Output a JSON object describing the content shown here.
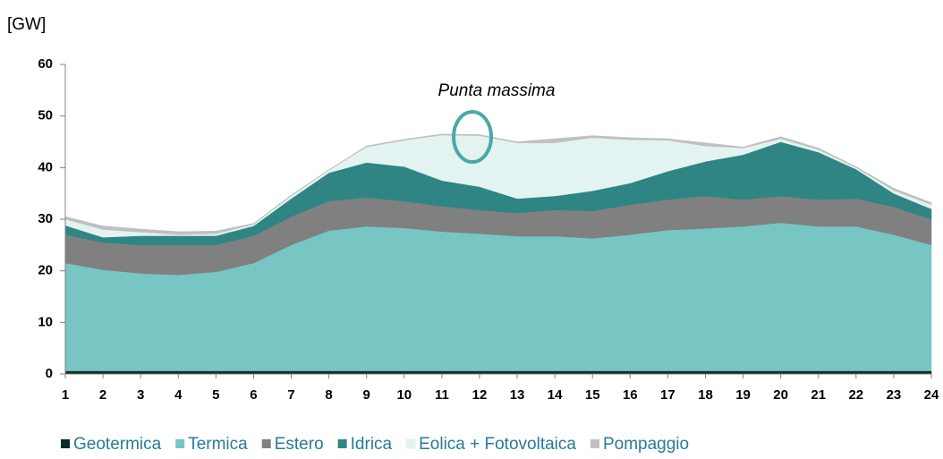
{
  "chart_data": {
    "type": "stacked_area",
    "y_axis_label": "[GW]",
    "annotation": "Punta massima",
    "categories": [
      1,
      2,
      3,
      4,
      5,
      6,
      7,
      8,
      9,
      10,
      11,
      12,
      13,
      14,
      15,
      16,
      17,
      18,
      19,
      20,
      21,
      22,
      23,
      24
    ],
    "ylim": [
      0,
      60
    ],
    "yticks": [
      0,
      10,
      20,
      30,
      40,
      50,
      60
    ],
    "series": [
      {
        "name": "Geotermica",
        "color": "#0d2b2a",
        "values": [
          0.6,
          0.6,
          0.6,
          0.6,
          0.6,
          0.6,
          0.6,
          0.6,
          0.6,
          0.6,
          0.6,
          0.6,
          0.6,
          0.6,
          0.6,
          0.6,
          0.6,
          0.6,
          0.6,
          0.6,
          0.6,
          0.6,
          0.6,
          0.6
        ]
      },
      {
        "name": "Termica",
        "color": "#77c6c3",
        "values": [
          20.9,
          19.6,
          18.9,
          18.6,
          19.2,
          20.9,
          24.4,
          27.2,
          28,
          27.7,
          27,
          26.6,
          26.1,
          26.1,
          25.7,
          26.4,
          27.3,
          27.6,
          28,
          28.7,
          28,
          28,
          26.4,
          24.4
        ]
      },
      {
        "name": "Estero",
        "color": "#808080",
        "values": [
          5.5,
          5.3,
          5.5,
          5.8,
          5.2,
          5.3,
          5.5,
          5.7,
          5.6,
          5.2,
          4.9,
          4.6,
          4.5,
          5.1,
          5.3,
          5.8,
          5.9,
          6.3,
          5.2,
          5.2,
          5.2,
          5.4,
          5.4,
          5
        ]
      },
      {
        "name": "Idrica",
        "color": "#2e8583",
        "values": [
          1.8,
          1,
          1.8,
          1.8,
          1.8,
          1.9,
          3.5,
          5.5,
          6.8,
          6.7,
          5,
          4.5,
          2.8,
          2.7,
          3.9,
          4.2,
          5.5,
          6.7,
          8.7,
          10.5,
          9.2,
          5.7,
          2.6,
          2
        ]
      },
      {
        "name": "Eolica + Fotovoltaica",
        "color": "#e3f3f2",
        "values": [
          1.2,
          1.5,
          0.7,
          0.2,
          0.4,
          0.3,
          0.5,
          0.5,
          3,
          5.1,
          8.8,
          9.9,
          10.8,
          10.3,
          10.3,
          8.4,
          6,
          3,
          1.3,
          0.6,
          0.5,
          0.3,
          0.6,
          0.8
        ]
      },
      {
        "name": "Pompaggio",
        "color": "#c0c0c0",
        "values": [
          0.5,
          0.7,
          0.6,
          0.6,
          0.5,
          0.2,
          0.2,
          0.1,
          0.2,
          0.2,
          0.2,
          0.2,
          0.2,
          0.8,
          0.4,
          0.4,
          0.3,
          0.6,
          0.2,
          0.4,
          0.3,
          0.2,
          0.4,
          0.4
        ]
      }
    ]
  }
}
